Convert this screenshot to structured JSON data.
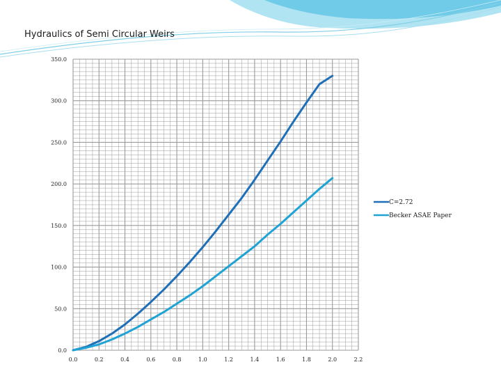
{
  "slide": {
    "title": "Hydraulics of Semi Circular Weirs"
  },
  "colors": {
    "accent": "#29a8d6",
    "series1": "#1f6fb8",
    "series2": "#1fa3d4",
    "grid": "#9a9a9a"
  },
  "chart_data": {
    "type": "line",
    "title": "",
    "xlabel": "",
    "ylabel": "",
    "xlim": [
      0,
      2.2
    ],
    "ylim": [
      0,
      350
    ],
    "x_ticks": [
      0.0,
      0.2,
      0.4,
      0.6,
      0.8,
      1.0,
      1.2,
      1.4,
      1.6,
      1.8,
      2.0,
      2.2
    ],
    "x_tick_labels": [
      "0.0",
      "0.2",
      "0.4",
      "0.6",
      "0.8",
      "1.0",
      "1.2",
      "1.4",
      "1.6",
      "1.8",
      "2.0",
      "2.2"
    ],
    "y_ticks": [
      0,
      50,
      100,
      150,
      200,
      250,
      300,
      350
    ],
    "y_tick_labels": [
      "0.0",
      "50.0",
      "100.0",
      "150.0",
      "200.0",
      "250.0",
      "300.0",
      "350.0"
    ],
    "grid": true,
    "legend_position": "right",
    "series": [
      {
        "name": "C=2.72",
        "color": "#1f6fb8",
        "x": [
          0,
          0.1,
          0.2,
          0.3,
          0.4,
          0.5,
          0.6,
          0.7,
          0.8,
          0.9,
          1.0,
          1.1,
          1.2,
          1.3,
          1.4,
          1.5,
          1.6,
          1.7,
          1.8,
          1.9,
          1.95,
          2.0
        ],
        "y": [
          0,
          4,
          11,
          20,
          31,
          44,
          58,
          73,
          89,
          106,
          124,
          143,
          163,
          183,
          205,
          228,
          251,
          275,
          298,
          320,
          325,
          330
        ]
      },
      {
        "name": "Becker ASAE Paper",
        "color": "#1fa3d4",
        "x": [
          0,
          0.1,
          0.2,
          0.3,
          0.4,
          0.5,
          0.6,
          0.7,
          0.8,
          0.9,
          1.0,
          1.1,
          1.2,
          1.3,
          1.4,
          1.5,
          1.6,
          1.7,
          1.8,
          1.9,
          2.0
        ],
        "y": [
          0,
          3,
          7,
          13,
          20,
          28,
          37,
          46,
          56,
          66,
          77,
          89,
          101,
          113,
          125,
          139,
          152,
          166,
          180,
          194,
          207
        ]
      }
    ]
  }
}
